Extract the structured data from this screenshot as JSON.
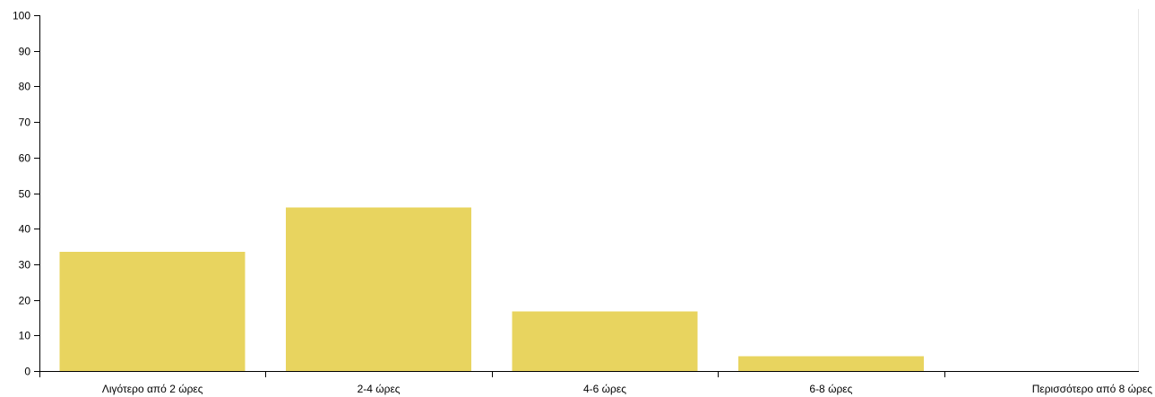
{
  "chart_data": {
    "type": "bar",
    "title": "",
    "xlabel": "",
    "ylabel": "",
    "categories": [
      "Λιγότερο από 2 ώρες",
      "2-4 ώρες",
      "4-6 ώρες",
      "6-8 ώρες",
      "Περισσότερο από 8 ώρες"
    ],
    "values": [
      33.5,
      46,
      16.7,
      4.2,
      0
    ],
    "ylim": [
      0,
      100
    ],
    "yticks": [
      0,
      10,
      20,
      30,
      40,
      50,
      60,
      70,
      80,
      90,
      100
    ],
    "bar_color": "#e8d45f",
    "grid": false,
    "legend": "none"
  }
}
